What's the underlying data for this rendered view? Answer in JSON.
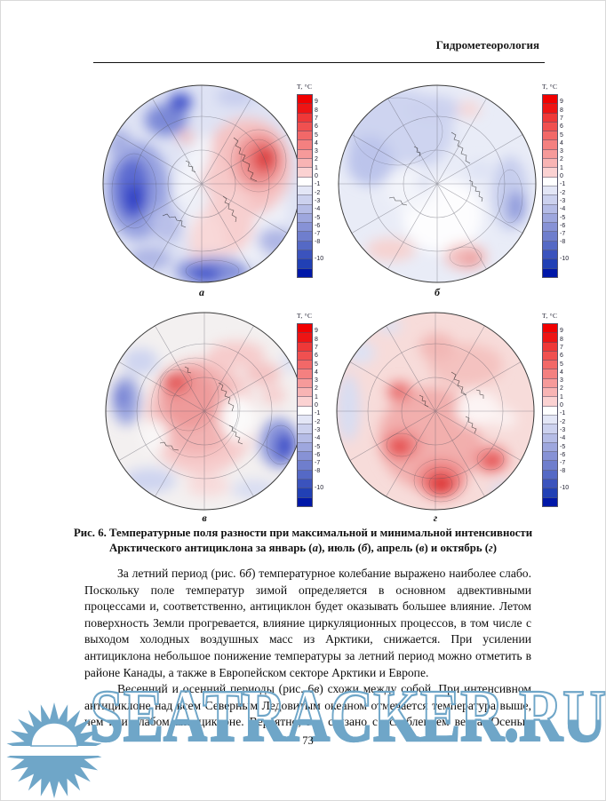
{
  "page": {
    "header": "Гидрометеорология",
    "page_number": "73"
  },
  "figure": {
    "panel_labels": {
      "a": "а",
      "b": "б",
      "v": "в",
      "g": "г"
    },
    "colorbar": {
      "title": "T, °C",
      "cells": [
        "#f10000",
        "#ee1414",
        "#ef3838",
        "#f05050",
        "#f26868",
        "#f48080",
        "#f69a9a",
        "#f8b4b4",
        "#fbd2d2",
        "#ffffff",
        "#e3e6f6",
        "#ccd1ee",
        "#b5bce6",
        "#9ea7de",
        "#8792d6",
        "#6f7ecd",
        "#5569c5",
        "#3b53bd",
        "#2140b5",
        "#0017a8"
      ],
      "ticks": [
        "9",
        "8",
        "7",
        "6",
        "5",
        "4",
        "3",
        "2",
        "1",
        "0",
        "-1",
        "-2",
        "-3",
        "-4",
        "-5",
        "-6",
        "-7",
        "-8",
        "-10"
      ]
    },
    "caption": {
      "part1": "Рис. 6. Температурные поля разности при максимальной и минимальной интенсивности Арктического антициклона за январь (",
      "it1": "а",
      "part2": "), июль (",
      "it2": "б",
      "part3": "), апрель (",
      "it3": "в",
      "part4": ") и октябрь (",
      "it4": "г",
      "part5": ")"
    }
  },
  "body": {
    "p1": {
      "part1": "За летний период (рис. 6",
      "it": "б",
      "part2": ") температурное колебание выражено наиболее слабо. Поскольку поле температур зимой определяется в основном адвективными процессами и, соответственно, антициклон будет оказывать большее влияние. Летом поверхность Земли прогревается, влияние циркуляционных процессов, в том числе с выходом холодных воздушных масс из Арктики, снижается. При усилении антициклона небольшое понижение температуры за летний период можно отметить в районе Канады, а также в Европейском секторе Арктики и Европе."
    },
    "p2": {
      "part1": "Весенний и осенний периоды (рис. 6",
      "it": "в",
      "part2": ") схожи между собой. При интенсивном антициклоне над всем Северным Ледовитым океаном отмечается температура выше, чем при слабом антициклоне. Вероятно, это связано с ослаблением ветра. Осенью"
    }
  },
  "watermark": {
    "text": "SEATRACKER.RU",
    "color": "#6fa6c8"
  }
}
